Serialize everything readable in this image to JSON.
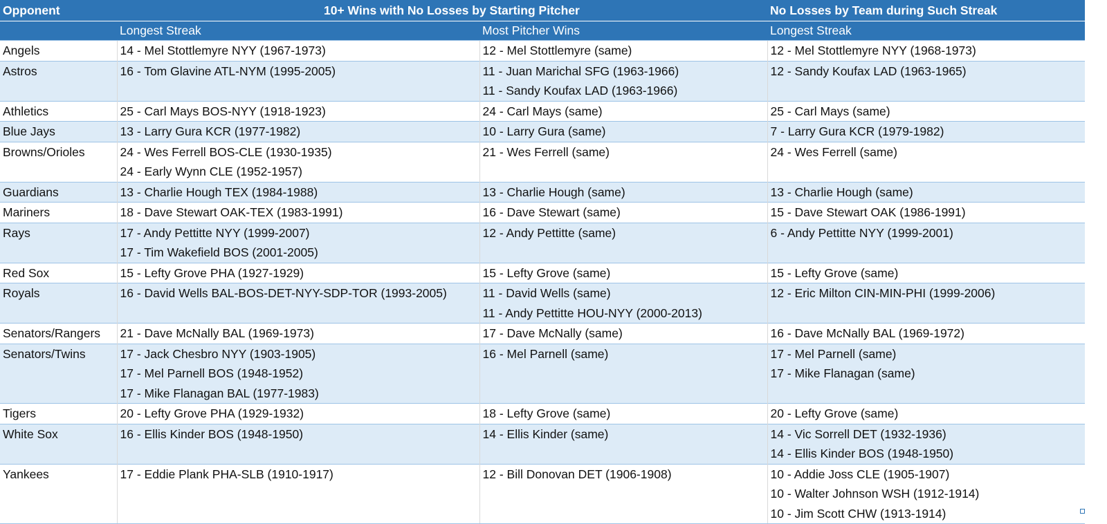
{
  "header": {
    "col1": "Opponent",
    "group1": "10+ Wins with No Losses by Starting Pitcher",
    "group2": "No Losses by Team during Such Streak",
    "sub1": "Longest Streak",
    "sub2": "Most Pitcher Wins",
    "sub3": "Longest Streak"
  },
  "rows": [
    {
      "opponent": "Angels",
      "longest": [
        "14 - Mel Stottlemyre NYY (1967-1973)"
      ],
      "most": [
        "12 - Mel Stottlemyre (same)"
      ],
      "team": [
        "12 - Mel Stottlemyre NYY (1968-1973)"
      ]
    },
    {
      "opponent": "Astros",
      "longest": [
        "16 - Tom Glavine ATL-NYM (1995-2005)"
      ],
      "most": [
        "11 - Juan Marichal SFG (1963-1966)",
        "11 - Sandy Koufax LAD (1963-1966)"
      ],
      "team": [
        "12 - Sandy Koufax LAD (1963-1965)"
      ]
    },
    {
      "opponent": "Athletics",
      "longest": [
        "25 - Carl Mays BOS-NYY (1918-1923)"
      ],
      "most": [
        "24 - Carl Mays (same)"
      ],
      "team": [
        "25 - Carl Mays (same)"
      ]
    },
    {
      "opponent": "Blue Jays",
      "longest": [
        "13 - Larry Gura KCR (1977-1982)"
      ],
      "most": [
        "10 - Larry Gura (same)"
      ],
      "team": [
        "7 - Larry Gura KCR (1979-1982)"
      ]
    },
    {
      "opponent": "Browns/Orioles",
      "longest": [
        "24 - Wes Ferrell BOS-CLE (1930-1935)",
        "24 - Early Wynn CLE (1952-1957)"
      ],
      "most": [
        "21 - Wes Ferrell (same)"
      ],
      "team": [
        "24 - Wes Ferrell (same)"
      ]
    },
    {
      "opponent": "Guardians",
      "longest": [
        "13 - Charlie Hough TEX (1984-1988)"
      ],
      "most": [
        "13 - Charlie Hough (same)"
      ],
      "team": [
        "13 - Charlie Hough (same)"
      ]
    },
    {
      "opponent": "Mariners",
      "longest": [
        "18 - Dave Stewart OAK-TEX (1983-1991)"
      ],
      "most": [
        "16 - Dave Stewart (same)"
      ],
      "team": [
        "15 - Dave Stewart OAK (1986-1991)"
      ]
    },
    {
      "opponent": "Rays",
      "longest": [
        "17 - Andy Pettitte NYY (1999-2007)",
        "17 - Tim Wakefield BOS (2001-2005)"
      ],
      "most": [
        "12 - Andy Pettitte (same)"
      ],
      "team": [
        "6 - Andy Pettitte NYY (1999-2001)"
      ]
    },
    {
      "opponent": "Red Sox",
      "longest": [
        "15 - Lefty Grove PHA (1927-1929)"
      ],
      "most": [
        "15 - Lefty Grove (same)"
      ],
      "team": [
        "15 - Lefty Grove (same)"
      ]
    },
    {
      "opponent": "Royals",
      "longest": [
        "16 - David Wells BAL-BOS-DET-NYY-SDP-TOR (1993-2005)"
      ],
      "most": [
        "11 - David Wells (same)",
        "11 - Andy Pettitte HOU-NYY (2000-2013)"
      ],
      "team": [
        "12 - Eric Milton CIN-MIN-PHI (1999-2006)"
      ]
    },
    {
      "opponent": "Senators/Rangers",
      "longest": [
        "21 - Dave McNally BAL (1969-1973)"
      ],
      "most": [
        "17 - Dave McNally (same)"
      ],
      "team": [
        "16 - Dave McNally BAL (1969-1972)"
      ]
    },
    {
      "opponent": "Senators/Twins",
      "longest": [
        "17 - Jack Chesbro NYY (1903-1905)",
        "17 - Mel Parnell BOS (1948-1952)",
        "17 - Mike Flanagan BAL (1977-1983)"
      ],
      "most": [
        "16 - Mel Parnell (same)"
      ],
      "team": [
        "17 - Mel Parnell (same)",
        "17 - Mike Flanagan (same)"
      ]
    },
    {
      "opponent": "Tigers",
      "longest": [
        "20 - Lefty Grove PHA (1929-1932)"
      ],
      "most": [
        "18 - Lefty Grove (same)"
      ],
      "team": [
        "20 - Lefty Grove (same)"
      ]
    },
    {
      "opponent": "White Sox",
      "longest": [
        "16 - Ellis Kinder BOS (1948-1950)"
      ],
      "most": [
        "14 - Ellis Kinder (same)"
      ],
      "team": [
        "14 - Vic Sorrell DET (1932-1936)",
        "14 - Ellis Kinder BOS (1948-1950)"
      ]
    },
    {
      "opponent": "Yankees",
      "longest": [
        "17 - Eddie Plank PHA-SLB (1910-1917)"
      ],
      "most": [
        "12 - Bill Donovan DET (1906-1908)"
      ],
      "team": [
        "10 - Addie Joss CLE (1905-1907)",
        "10 - Walter Johnson WSH (1912-1914)",
        "10 - Jim Scott CHW (1913-1914)"
      ]
    }
  ]
}
